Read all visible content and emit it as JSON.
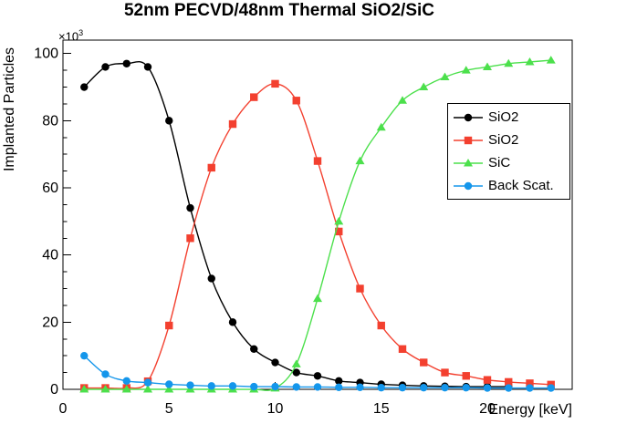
{
  "chart_data": {
    "type": "line",
    "title": "52nm PECVD/48nm Thermal SiO2/SiC",
    "xlabel": "Energy [keV]",
    "ylabel": "Implanted Particles",
    "y_multiplier_base": "×10",
    "y_multiplier_exp": "3",
    "xlim": [
      0,
      24
    ],
    "ylim": [
      0,
      104
    ],
    "x_ticks": [
      0,
      5,
      10,
      15,
      20
    ],
    "x_minor_step": 1,
    "y_ticks": [
      0,
      20,
      40,
      60,
      80,
      100
    ],
    "y_minor_step": 5,
    "grid": false,
    "legend_position": "upper-right-inside",
    "series": [
      {
        "name": "SiO2",
        "color": "#000000",
        "marker": "circle",
        "x": [
          1,
          2,
          3,
          4,
          5,
          6,
          7,
          8,
          9,
          10,
          11,
          12,
          13,
          14,
          15,
          16,
          17,
          18,
          19,
          20,
          21
        ],
        "values": [
          90,
          96,
          97,
          96,
          80,
          54,
          33,
          20,
          12,
          8,
          5,
          4,
          2.5,
          2,
          1.5,
          1.2,
          1,
          0.9,
          0.8,
          0.8,
          0.8
        ]
      },
      {
        "name": "SiO2",
        "color": "#f3402f",
        "marker": "square",
        "x": [
          1,
          2,
          3,
          4,
          5,
          6,
          7,
          8,
          9,
          10,
          11,
          12,
          13,
          14,
          15,
          16,
          17,
          18,
          19,
          20,
          21,
          22,
          23
        ],
        "values": [
          0.4,
          0.4,
          0.4,
          2.4,
          19,
          45,
          66,
          79,
          87,
          91,
          86,
          68,
          47,
          30,
          19,
          12,
          8,
          5,
          4,
          2.8,
          2.2,
          1.8,
          1.4
        ]
      },
      {
        "name": "SiC",
        "color": "#4ce04c",
        "marker": "triangle",
        "x": [
          1,
          2,
          3,
          4,
          5,
          6,
          7,
          8,
          9,
          10,
          11,
          12,
          13,
          14,
          15,
          16,
          17,
          18,
          19,
          20,
          21,
          22,
          23
        ],
        "values": [
          0,
          0,
          0,
          0,
          0,
          0,
          0,
          0,
          0,
          0.3,
          7.5,
          27,
          50,
          68,
          78,
          86,
          90,
          93,
          95,
          96,
          97,
          97.5,
          98
        ]
      },
      {
        "name": "Back Scat.",
        "color": "#1496eb",
        "marker": "circle",
        "x": [
          1,
          2,
          3,
          4,
          5,
          6,
          7,
          8,
          9,
          10,
          11,
          12,
          13,
          14,
          15,
          16,
          17,
          18,
          19,
          20,
          21,
          22,
          23
        ],
        "values": [
          10,
          4.5,
          2.5,
          2,
          1.5,
          1.2,
          1,
          1,
          0.8,
          0.8,
          0.7,
          0.7,
          0.6,
          0.6,
          0.5,
          0.5,
          0.5,
          0.5,
          0.5,
          0.4,
          0.4,
          0.4,
          0.4
        ]
      }
    ]
  }
}
